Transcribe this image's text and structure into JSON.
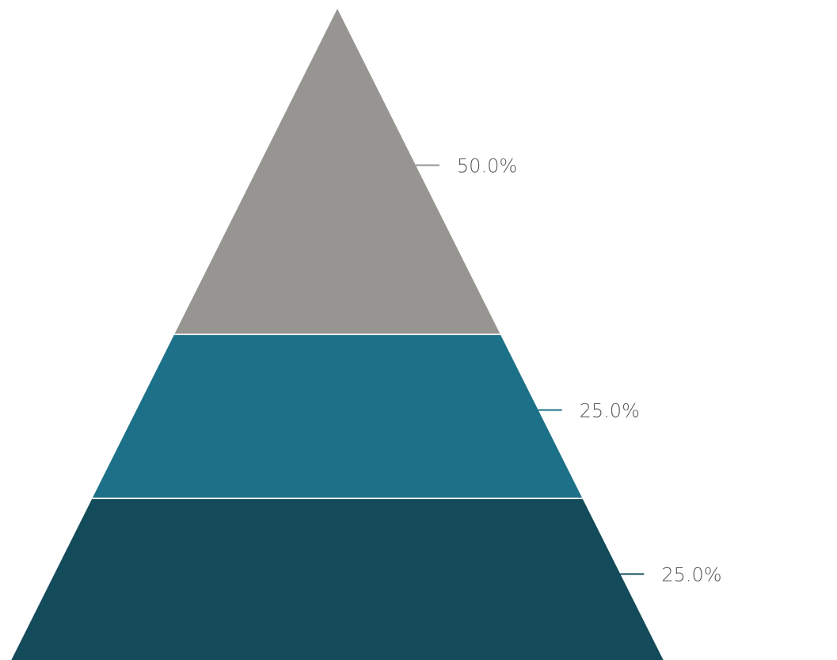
{
  "chart_data": {
    "type": "pyramid",
    "segments": [
      {
        "value": 50.0,
        "label": "50.0%",
        "color": "#969592"
      },
      {
        "value": 25.0,
        "label": "25.0%",
        "color": "#1c7088"
      },
      {
        "value": 25.0,
        "label": "25.0%",
        "color": "#144b5a"
      }
    ],
    "separator_color": "#e8eef0"
  }
}
